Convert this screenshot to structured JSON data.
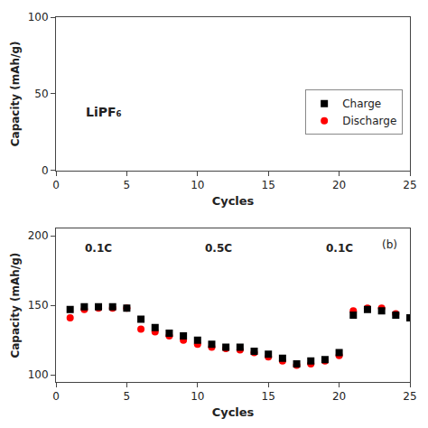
{
  "chart_data": [
    {
      "type": "scatter",
      "xlabel": "Cycles",
      "ylabel": "Capacity (mAh/g)",
      "xlim": [
        0,
        25
      ],
      "ylim": [
        0,
        100
      ],
      "xticks": [
        0,
        5,
        10,
        15,
        20,
        25
      ],
      "yticks": [
        0,
        50,
        100
      ],
      "grid": false,
      "legend": "right",
      "annotations": [
        "LiPF₆"
      ],
      "series": [
        {
          "name": "Charge",
          "color": "#000000",
          "marker": "square",
          "x": [],
          "values": []
        },
        {
          "name": "Discharge",
          "color": "#ff0000",
          "marker": "circle",
          "x": [],
          "values": []
        }
      ]
    },
    {
      "type": "scatter",
      "xlabel": "Cycles",
      "ylabel": "Capacity (mAh/g)",
      "xlim": [
        0,
        25
      ],
      "ylim": [
        95,
        205
      ],
      "xticks": [
        0,
        5,
        10,
        15,
        20,
        25
      ],
      "yticks": [
        100,
        150,
        200
      ],
      "grid": false,
      "annotations": [
        "0.1C",
        "0.5C",
        "0.1C",
        "(b)"
      ],
      "series": [
        {
          "color": "#ff0000",
          "marker": "circle",
          "x": [
            1,
            2,
            3,
            4,
            5,
            6,
            7,
            8,
            9,
            10,
            11,
            12,
            13,
            14,
            15,
            16,
            17,
            18,
            19,
            20,
            21,
            22,
            23,
            24,
            25
          ],
          "values": [
            141,
            147,
            148,
            148,
            148,
            133,
            131,
            128,
            125,
            122,
            120,
            119,
            118,
            116,
            113,
            110,
            107,
            108,
            110,
            114,
            146,
            148,
            148,
            144,
            141
          ]
        },
        {
          "color": "#000000",
          "marker": "square",
          "x": [
            1,
            2,
            3,
            4,
            5,
            6,
            7,
            8,
            9,
            10,
            11,
            12,
            13,
            14,
            15,
            16,
            17,
            18,
            19,
            20,
            21,
            22,
            23,
            24,
            25
          ],
          "values": [
            147,
            149,
            149,
            149,
            148,
            140,
            134,
            130,
            128,
            125,
            122,
            120,
            120,
            117,
            115,
            112,
            108,
            110,
            111,
            116,
            143,
            147,
            146,
            143,
            141
          ]
        }
      ]
    }
  ]
}
